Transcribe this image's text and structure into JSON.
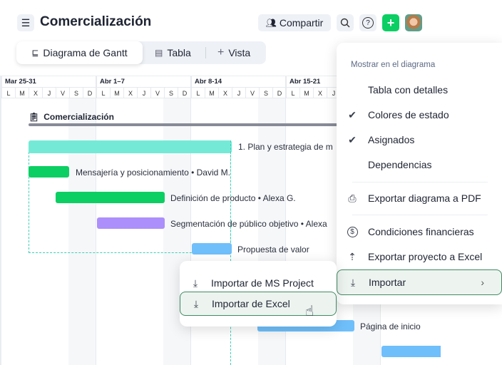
{
  "header": {
    "title": "Comercialización",
    "share_label": "Compartir",
    "menu_icon": "hamburger-icon",
    "search_icon": "search-icon",
    "help_icon": "help-icon",
    "add_icon": "plus-icon",
    "accent": "#0ccf63"
  },
  "tabs": [
    {
      "label": "Diagrama de Gantt",
      "icon": "gantt-icon"
    },
    {
      "label": "Tabla",
      "icon": "table-icon"
    },
    {
      "label": "Vista",
      "icon": "plus-icon"
    }
  ],
  "timeline": {
    "weeks": [
      "Mar 25-31",
      "Abr 1–7",
      "Abr 8-14",
      "Abr 15-21"
    ],
    "days": [
      "L",
      "M",
      "X",
      "J",
      "V",
      "S",
      "D"
    ]
  },
  "project": {
    "name": "Comercialización"
  },
  "tasks": [
    {
      "label": "1. Plan y estrategia de m",
      "color": "#74ead6"
    },
    {
      "label": "Mensajería y posicionamiento • David M.",
      "color": "#0ccf63"
    },
    {
      "label": "Definición de producto • Alexa G.",
      "color": "#0ccf63"
    },
    {
      "label": "Segmentación de público objetivo • Alexa",
      "color": "#ad8ffb"
    },
    {
      "label": "Propuesta de valor",
      "color": "#6fbffb"
    },
    {
      "label": "Página de inicio",
      "color": "#6fbffb"
    }
  ],
  "menu": {
    "section": "Mostrar en el diagrama",
    "items": [
      {
        "label": "Tabla con detalles",
        "checked": false
      },
      {
        "label": "Colores de estado",
        "checked": true
      },
      {
        "label": "Asignados",
        "checked": true
      },
      {
        "label": "Dependencias",
        "checked": false
      },
      {
        "label": "Exportar diagrama a PDF",
        "icon": "printer-icon"
      },
      {
        "label": "Condiciones financieras",
        "icon": "dollar-icon"
      },
      {
        "label": "Exportar proyecto a Excel",
        "icon": "upload-icon"
      },
      {
        "label": "Importar",
        "icon": "download-icon"
      }
    ]
  },
  "submenu": {
    "items": [
      {
        "label": "Importar de MS Project"
      },
      {
        "label": "Importar de Excel"
      }
    ]
  }
}
